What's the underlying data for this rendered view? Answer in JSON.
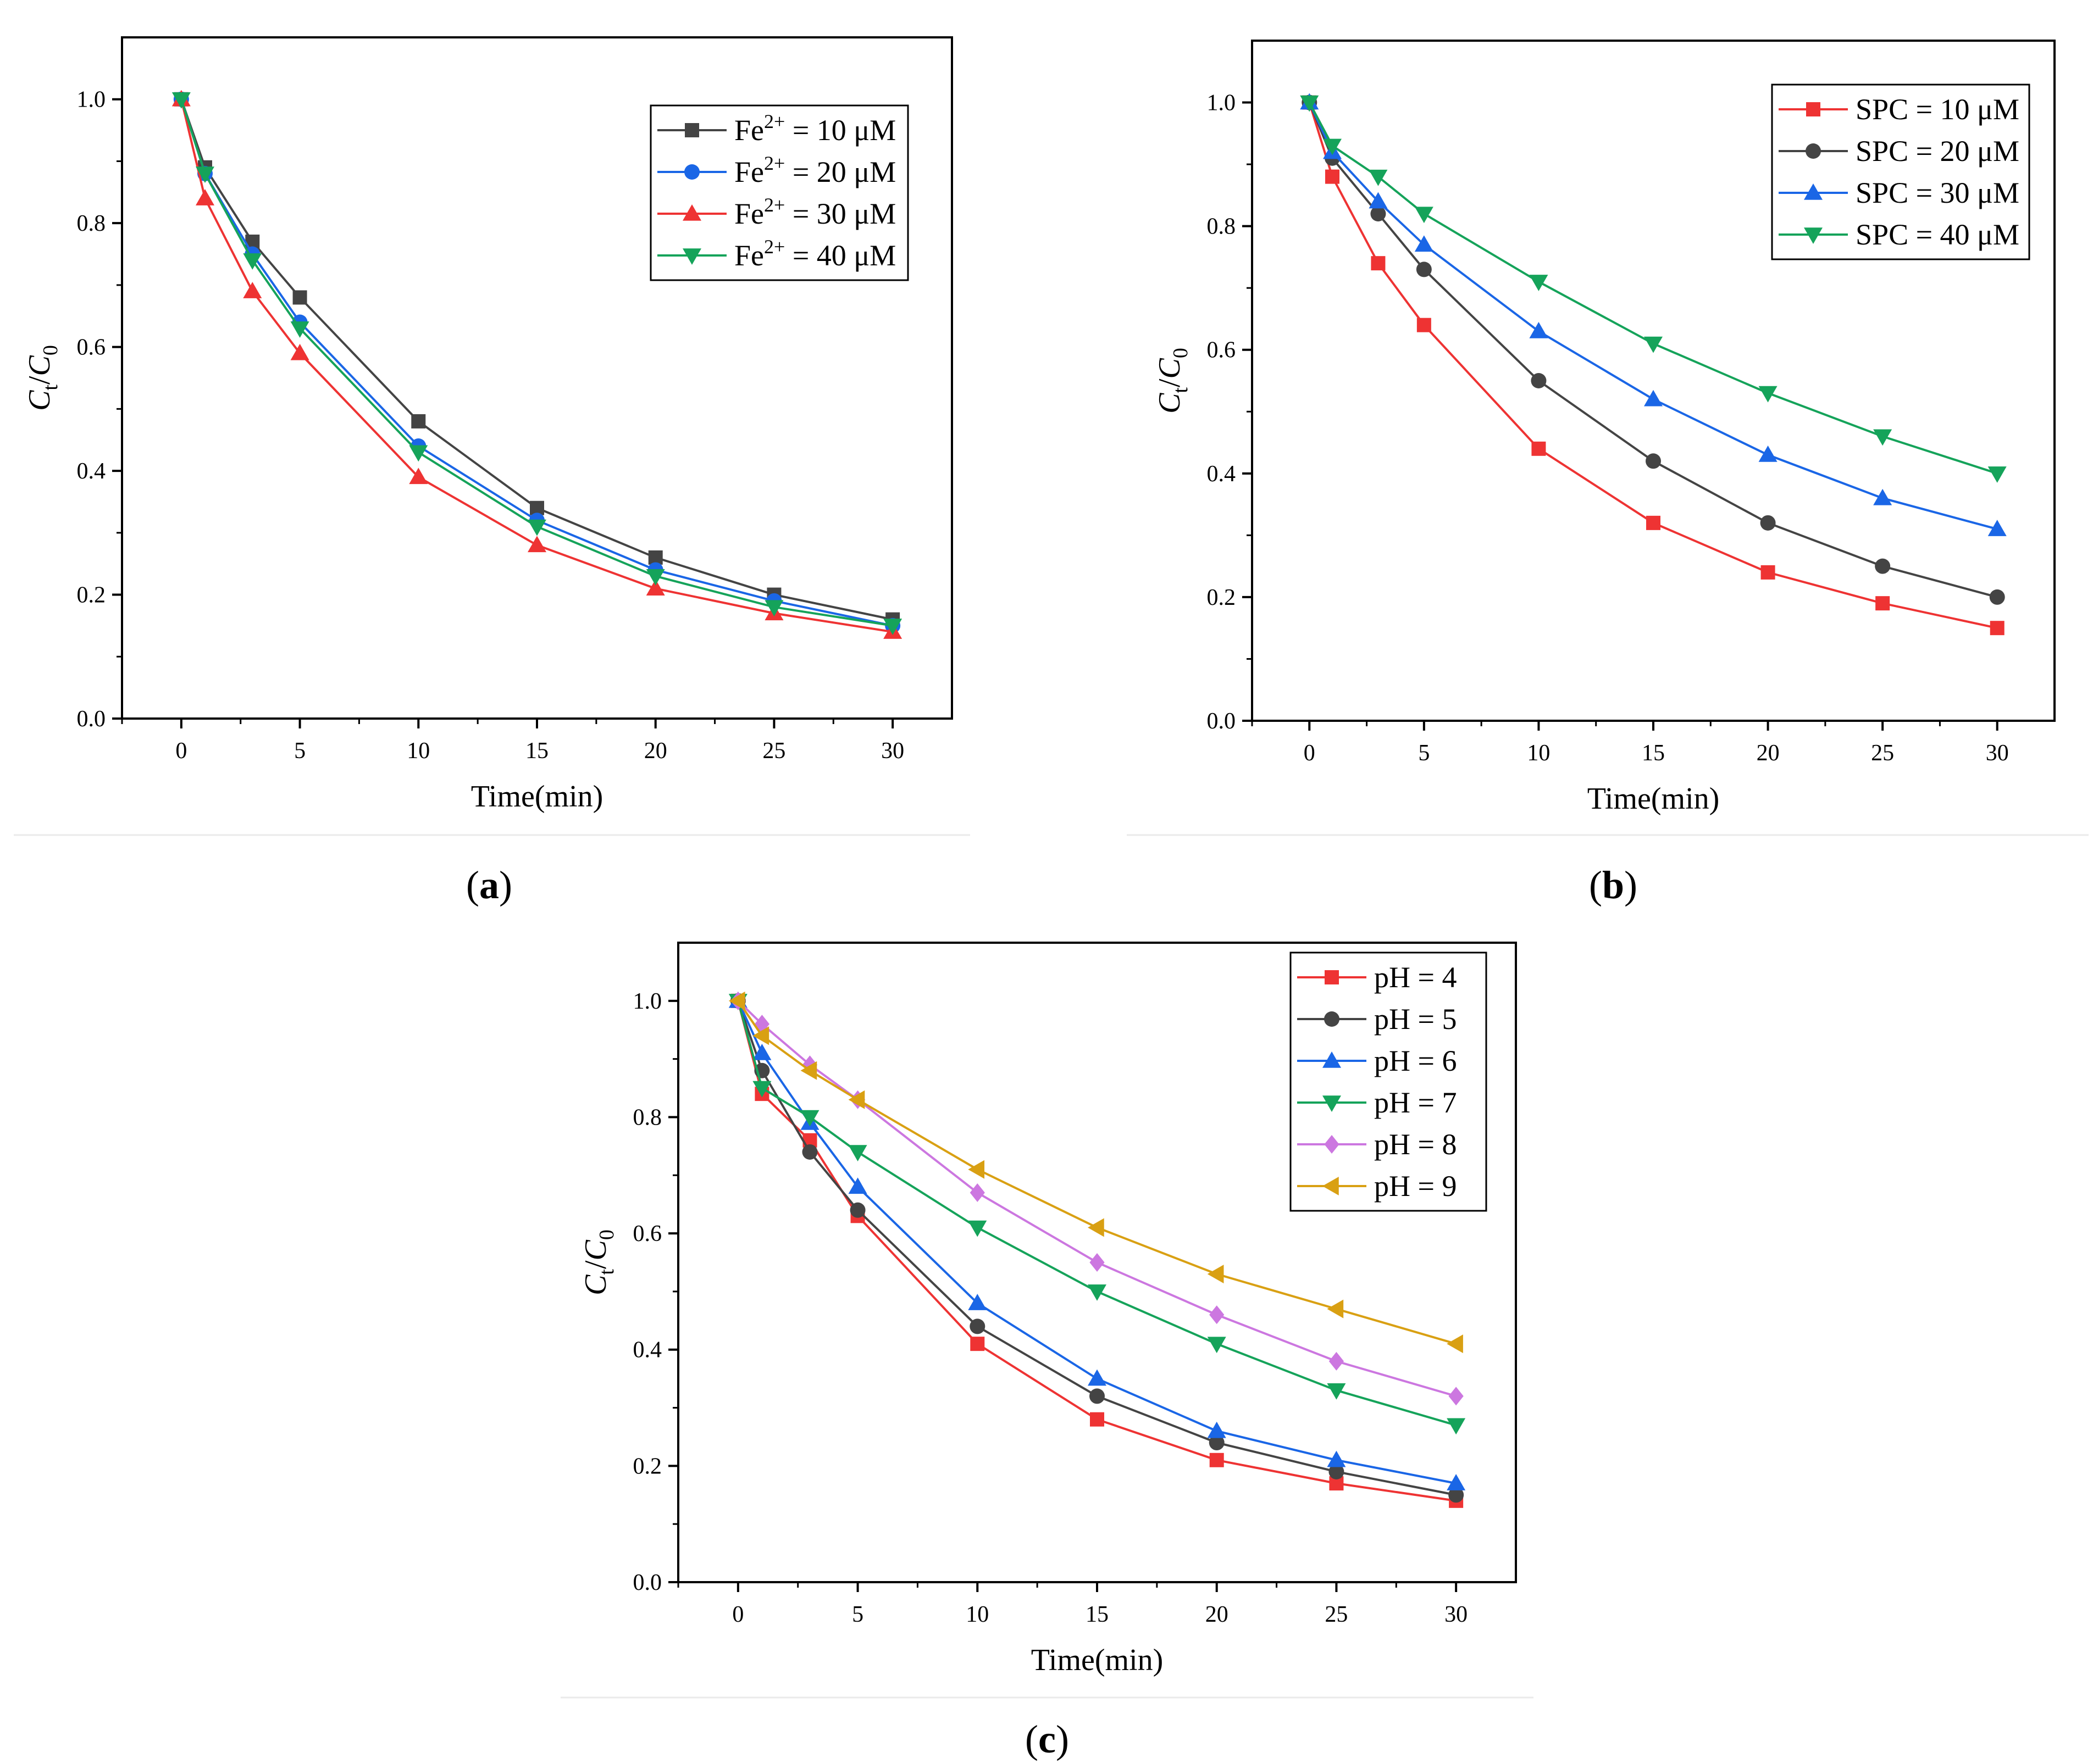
{
  "figure": {
    "captions": [
      "a",
      "b",
      "c"
    ]
  },
  "chart_data": [
    {
      "id": "a",
      "type": "line",
      "caption": "a",
      "xlabel": "Time(min)",
      "ylabel_main": "C",
      "ylabel_parts": [
        "t",
        "/",
        "C",
        "0"
      ],
      "xlim": [
        -2.5,
        32.5
      ],
      "ylim": [
        0,
        1.1
      ],
      "xticks": [
        0,
        5,
        10,
        15,
        20,
        25,
        30
      ],
      "yticks": [
        0.0,
        0.2,
        0.4,
        0.6,
        0.8,
        1.0
      ],
      "x": [
        0,
        1,
        3,
        5,
        10,
        15,
        20,
        25,
        30
      ],
      "legend_position": "top-right",
      "series": [
        {
          "name": "Fe2+ = 10 μM",
          "label_base": "Fe",
          "label_sup": "2+",
          "label_rest": " = 10 μM",
          "color": "#444444",
          "marker": "square",
          "values": [
            1.0,
            0.89,
            0.77,
            0.68,
            0.48,
            0.34,
            0.26,
            0.2,
            0.16
          ]
        },
        {
          "name": "Fe2+ = 20 μM",
          "label_base": "Fe",
          "label_sup": "2+",
          "label_rest": " = 20 μM",
          "color": "#1a66e6",
          "marker": "circle",
          "values": [
            1.0,
            0.88,
            0.75,
            0.64,
            0.44,
            0.32,
            0.24,
            0.19,
            0.15
          ]
        },
        {
          "name": "Fe2+ = 30 μM",
          "label_base": "Fe",
          "label_sup": "2+",
          "label_rest": " = 30 μM",
          "color": "#ee3333",
          "marker": "triangle-up",
          "values": [
            1.0,
            0.84,
            0.69,
            0.59,
            0.39,
            0.28,
            0.21,
            0.17,
            0.14
          ]
        },
        {
          "name": "Fe2+ = 40 μM",
          "label_base": "Fe",
          "label_sup": "2+",
          "label_rest": " = 40 μM",
          "color": "#15a35a",
          "marker": "triangle-down",
          "values": [
            1.0,
            0.88,
            0.74,
            0.63,
            0.43,
            0.31,
            0.23,
            0.18,
            0.15
          ]
        }
      ]
    },
    {
      "id": "b",
      "type": "line",
      "caption": "b",
      "xlabel": "Time(min)",
      "ylabel_main": "C",
      "ylabel_parts": [
        "t",
        "/",
        "C",
        "0"
      ],
      "xlim": [
        -2.5,
        32.5
      ],
      "ylim": [
        0,
        1.1
      ],
      "xticks": [
        0,
        5,
        10,
        15,
        20,
        25,
        30
      ],
      "yticks": [
        0.0,
        0.2,
        0.4,
        0.6,
        0.8,
        1.0
      ],
      "x": [
        0,
        1,
        3,
        5,
        10,
        15,
        20,
        25,
        30
      ],
      "legend_position": "top-right",
      "series": [
        {
          "name": "SPC = 10 μM",
          "label_base": "SPC = 10 μM",
          "label_sup": "",
          "label_rest": "",
          "color": "#ee3333",
          "marker": "square",
          "values": [
            1.0,
            0.88,
            0.74,
            0.64,
            0.44,
            0.32,
            0.24,
            0.19,
            0.15
          ]
        },
        {
          "name": "SPC = 20 μM",
          "label_base": "SPC = 20 μM",
          "label_sup": "",
          "label_rest": "",
          "color": "#444444",
          "marker": "circle",
          "values": [
            1.0,
            0.91,
            0.82,
            0.73,
            0.55,
            0.42,
            0.32,
            0.25,
            0.2
          ]
        },
        {
          "name": "SPC = 30 μM",
          "label_base": "SPC = 30 μM",
          "label_sup": "",
          "label_rest": "",
          "color": "#1a66e6",
          "marker": "triangle-up",
          "values": [
            1.0,
            0.92,
            0.84,
            0.77,
            0.63,
            0.52,
            0.43,
            0.36,
            0.31
          ]
        },
        {
          "name": "SPC = 40 μM",
          "label_base": "SPC = 40 μM",
          "label_sup": "",
          "label_rest": "",
          "color": "#15a35a",
          "marker": "triangle-down",
          "values": [
            1.0,
            0.93,
            0.88,
            0.82,
            0.71,
            0.61,
            0.53,
            0.46,
            0.4
          ]
        }
      ]
    },
    {
      "id": "c",
      "type": "line",
      "caption": "c",
      "xlabel": "Time(min)",
      "ylabel_main": "C",
      "ylabel_parts": [
        "t",
        "/",
        "C",
        "0"
      ],
      "xlim": [
        -2.5,
        32.5
      ],
      "ylim": [
        0,
        1.1
      ],
      "xticks": [
        0,
        5,
        10,
        15,
        20,
        25,
        30
      ],
      "yticks": [
        0.0,
        0.2,
        0.4,
        0.6,
        0.8,
        1.0
      ],
      "x": [
        0,
        1,
        3,
        5,
        10,
        15,
        20,
        25,
        30
      ],
      "legend_position": "top-right",
      "series": [
        {
          "name": "pH = 4",
          "label_base": "pH = 4",
          "label_sup": "",
          "label_rest": "",
          "color": "#ee3333",
          "marker": "square",
          "values": [
            1.0,
            0.84,
            0.76,
            0.63,
            0.41,
            0.28,
            0.21,
            0.17,
            0.14
          ]
        },
        {
          "name": "pH = 5",
          "label_base": "pH = 5",
          "label_sup": "",
          "label_rest": "",
          "color": "#444444",
          "marker": "circle",
          "values": [
            1.0,
            0.88,
            0.74,
            0.64,
            0.44,
            0.32,
            0.24,
            0.19,
            0.15
          ]
        },
        {
          "name": "pH = 6",
          "label_base": "pH = 6",
          "label_sup": "",
          "label_rest": "",
          "color": "#1a66e6",
          "marker": "triangle-up",
          "values": [
            1.0,
            0.91,
            0.79,
            0.68,
            0.48,
            0.35,
            0.26,
            0.21,
            0.17
          ]
        },
        {
          "name": "pH = 7",
          "label_base": "pH = 7",
          "label_sup": "",
          "label_rest": "",
          "color": "#15a35a",
          "marker": "triangle-down",
          "values": [
            1.0,
            0.85,
            0.8,
            0.74,
            0.61,
            0.5,
            0.41,
            0.33,
            0.27
          ]
        },
        {
          "name": "pH = 8",
          "label_base": "pH = 8",
          "label_sup": "",
          "label_rest": "",
          "color": "#cc77e0",
          "marker": "diamond",
          "values": [
            1.0,
            0.96,
            0.89,
            0.83,
            0.67,
            0.55,
            0.46,
            0.38,
            0.32
          ]
        },
        {
          "name": "pH = 9",
          "label_base": "pH = 9",
          "label_sup": "",
          "label_rest": "",
          "color": "#d9a013",
          "marker": "triangle-left",
          "values": [
            1.0,
            0.94,
            0.88,
            0.83,
            0.71,
            0.61,
            0.53,
            0.47,
            0.41
          ]
        }
      ]
    }
  ]
}
